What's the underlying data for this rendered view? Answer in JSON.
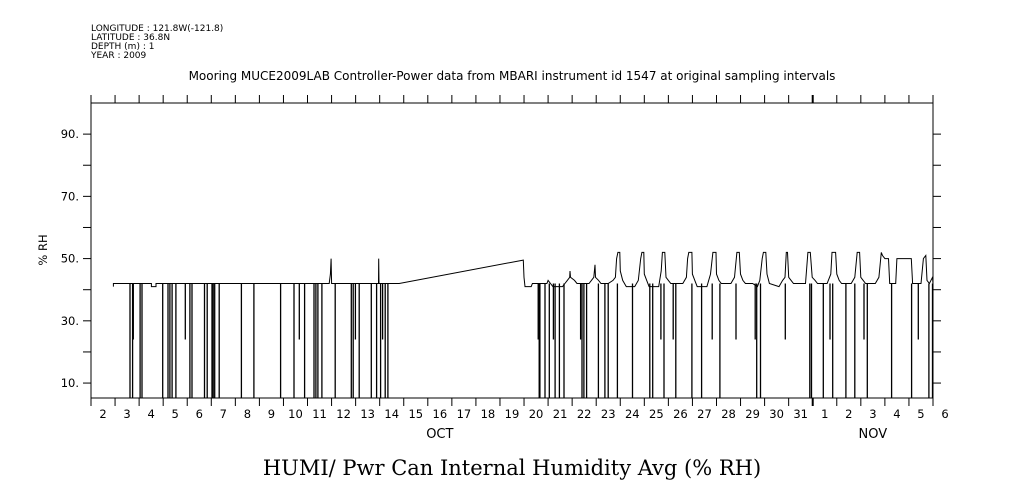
{
  "header": {
    "longitude": "LONGITUDE : 121.8W(-121.8)",
    "latitude": "LATITUDE : 36.8N",
    "depth": "DEPTH (m) : 1",
    "year": "YEAR : 2009"
  },
  "chart_data": {
    "type": "line",
    "title": "Mooring MUCE2009LAB Controller-Power data from MBARI instrument id 1547 at original sampling intervals",
    "xlabel": "HUMI/ Pwr Can Internal Humidity Avg (% RH)",
    "ylabel": "% RH",
    "x_units": "day (Oct 1 = 1, Nov 1 = 32)",
    "xlim": [
      2,
      37
    ],
    "ylim": [
      5.2,
      100
    ],
    "y_ticks": [
      10,
      30,
      50,
      70,
      90
    ],
    "y_tick_labels": [
      "10.",
      "30.",
      "50.",
      "70.",
      "90."
    ],
    "y_minor_ticks": [
      20,
      40,
      60,
      80
    ],
    "x_tick_labels": [
      "2",
      "3",
      "4",
      "5",
      "6",
      "7",
      "8",
      "9",
      "10",
      "11",
      "12",
      "13",
      "14",
      "15",
      "16",
      "17",
      "18",
      "19",
      "20",
      "21",
      "22",
      "23",
      "24",
      "25",
      "26",
      "27",
      "28",
      "29",
      "30",
      "31",
      "1",
      "2",
      "3",
      "4",
      "5",
      "6"
    ],
    "month_labels": [
      {
        "label": "OCT",
        "x": 16.5
      },
      {
        "label": "NOV",
        "x": 34.5
      }
    ],
    "grid": false,
    "line_color": "#000000",
    "series": [
      {
        "name": "HUMI",
        "points": [
          [
            2.93,
            41
          ],
          [
            2.93,
            42
          ],
          [
            4.51,
            42
          ],
          [
            4.51,
            41
          ],
          [
            4.7,
            41
          ],
          [
            4.7,
            42
          ],
          [
            11.9,
            42
          ],
          [
            11.95,
            45
          ],
          [
            11.98,
            50
          ],
          [
            12.0,
            42
          ],
          [
            13.95,
            42
          ],
          [
            13.96,
            50
          ],
          [
            13.97,
            42
          ],
          [
            14.81,
            42
          ],
          [
            19.97,
            49.5
          ],
          [
            20.0,
            44
          ],
          [
            20.04,
            41
          ],
          [
            20.3,
            41
          ],
          [
            20.35,
            42
          ],
          [
            20.95,
            42
          ],
          [
            21.0,
            43
          ],
          [
            21.1,
            42
          ],
          [
            21.2,
            41
          ],
          [
            21.6,
            41
          ],
          [
            21.7,
            42
          ],
          [
            21.8,
            43
          ],
          [
            21.9,
            44
          ],
          [
            21.91,
            46
          ],
          [
            21.93,
            44
          ],
          [
            22.1,
            43
          ],
          [
            22.2,
            42
          ],
          [
            22.7,
            42
          ],
          [
            22.8,
            43
          ],
          [
            22.9,
            44
          ],
          [
            22.95,
            48
          ],
          [
            22.97,
            44
          ],
          [
            23.1,
            43
          ],
          [
            23.2,
            42
          ],
          [
            23.5,
            42
          ],
          [
            23.7,
            43
          ],
          [
            23.8,
            44
          ],
          [
            23.85,
            50
          ],
          [
            23.9,
            52
          ],
          [
            23.98,
            52
          ],
          [
            24.0,
            46
          ],
          [
            24.1,
            43
          ],
          [
            24.25,
            41
          ],
          [
            24.6,
            41
          ],
          [
            24.75,
            43
          ],
          [
            24.85,
            50
          ],
          [
            24.9,
            52
          ],
          [
            24.98,
            52
          ],
          [
            25.0,
            45
          ],
          [
            25.1,
            43
          ],
          [
            25.2,
            41
          ],
          [
            25.6,
            41
          ],
          [
            25.7,
            46
          ],
          [
            25.75,
            52
          ],
          [
            25.85,
            52
          ],
          [
            25.9,
            44
          ],
          [
            26.0,
            43
          ],
          [
            26.1,
            42
          ],
          [
            26.6,
            42
          ],
          [
            26.75,
            44
          ],
          [
            26.8,
            50
          ],
          [
            26.85,
            52
          ],
          [
            26.98,
            52
          ],
          [
            27.0,
            45
          ],
          [
            27.1,
            43
          ],
          [
            27.2,
            41
          ],
          [
            27.6,
            41
          ],
          [
            27.75,
            45
          ],
          [
            27.85,
            52
          ],
          [
            27.98,
            52
          ],
          [
            28.0,
            45
          ],
          [
            28.1,
            43
          ],
          [
            28.2,
            42
          ],
          [
            28.6,
            42
          ],
          [
            28.75,
            44
          ],
          [
            28.85,
            52
          ],
          [
            28.95,
            52
          ],
          [
            29.0,
            45
          ],
          [
            29.1,
            43
          ],
          [
            29.2,
            42
          ],
          [
            29.5,
            42
          ],
          [
            29.7,
            41
          ],
          [
            29.8,
            43
          ],
          [
            29.9,
            50
          ],
          [
            29.95,
            52
          ],
          [
            30.05,
            52
          ],
          [
            30.1,
            45
          ],
          [
            30.2,
            42
          ],
          [
            30.6,
            41
          ],
          [
            30.75,
            43
          ],
          [
            30.85,
            44
          ],
          [
            30.9,
            52
          ],
          [
            30.95,
            52
          ],
          [
            31.0,
            44
          ],
          [
            31.1,
            43
          ],
          [
            31.2,
            42
          ],
          [
            31.7,
            42
          ],
          [
            31.8,
            52
          ],
          [
            31.9,
            52
          ],
          [
            31.98,
            44
          ],
          [
            32.1,
            43
          ],
          [
            32.2,
            42
          ],
          [
            32.6,
            42
          ],
          [
            32.75,
            45
          ],
          [
            32.8,
            52
          ],
          [
            32.95,
            52
          ],
          [
            33.0,
            45
          ],
          [
            33.1,
            43
          ],
          [
            33.2,
            42
          ],
          [
            33.6,
            42
          ],
          [
            33.75,
            44
          ],
          [
            33.85,
            52
          ],
          [
            33.95,
            52
          ],
          [
            34.0,
            44
          ],
          [
            34.1,
            43
          ],
          [
            34.2,
            42
          ],
          [
            34.6,
            42
          ],
          [
            34.75,
            44
          ],
          [
            34.85,
            52
          ],
          [
            34.9,
            51
          ],
          [
            35.0,
            50
          ],
          [
            35.15,
            50
          ],
          [
            35.2,
            42
          ],
          [
            35.45,
            42
          ],
          [
            35.5,
            50
          ],
          [
            36.1,
            50
          ],
          [
            36.15,
            42
          ],
          [
            36.5,
            42
          ],
          [
            36.6,
            50
          ],
          [
            36.7,
            51
          ],
          [
            36.75,
            43
          ],
          [
            36.85,
            42
          ],
          [
            36.98,
            44
          ],
          [
            37.0,
            42
          ]
        ],
        "dropouts": [
          [
            3.62,
            0
          ],
          [
            3.73,
            0
          ],
          [
            3.76,
            24
          ],
          [
            4.04,
            0
          ],
          [
            4.12,
            0
          ],
          [
            4.98,
            0
          ],
          [
            5.2,
            0
          ],
          [
            5.28,
            0
          ],
          [
            5.37,
            0
          ],
          [
            5.53,
            0
          ],
          [
            5.92,
            24
          ],
          [
            6.11,
            0
          ],
          [
            6.2,
            0
          ],
          [
            6.72,
            0
          ],
          [
            6.83,
            0
          ],
          [
            7.03,
            0
          ],
          [
            7.08,
            0
          ],
          [
            7.14,
            0
          ],
          [
            7.33,
            0
          ],
          [
            8.25,
            0
          ],
          [
            8.77,
            0
          ],
          [
            9.88,
            0
          ],
          [
            10.44,
            0
          ],
          [
            10.66,
            24
          ],
          [
            10.88,
            0
          ],
          [
            11.27,
            0
          ],
          [
            11.35,
            0
          ],
          [
            11.43,
            0
          ],
          [
            11.6,
            0
          ],
          [
            12.15,
            0
          ],
          [
            12.82,
            0
          ],
          [
            12.9,
            0
          ],
          [
            12.99,
            24
          ],
          [
            13.15,
            0
          ],
          [
            13.65,
            0
          ],
          [
            13.87,
            0
          ],
          [
            14.04,
            0
          ],
          [
            14.12,
            24
          ],
          [
            14.23,
            0
          ],
          [
            14.34,
            0
          ],
          [
            20.59,
            24
          ],
          [
            20.63,
            0
          ],
          [
            20.66,
            0
          ],
          [
            20.87,
            0
          ],
          [
            21.05,
            0
          ],
          [
            21.22,
            24
          ],
          [
            21.29,
            0
          ],
          [
            21.47,
            0
          ],
          [
            21.66,
            0
          ],
          [
            22.35,
            24
          ],
          [
            22.41,
            0
          ],
          [
            22.49,
            0
          ],
          [
            22.6,
            0
          ],
          [
            23.09,
            0
          ],
          [
            23.36,
            0
          ],
          [
            23.5,
            0
          ],
          [
            23.88,
            0
          ],
          [
            24.51,
            0
          ],
          [
            25.23,
            0
          ],
          [
            25.35,
            0
          ],
          [
            25.69,
            24
          ],
          [
            25.82,
            0
          ],
          [
            26.2,
            24
          ],
          [
            26.31,
            0
          ],
          [
            26.98,
            0
          ],
          [
            27.38,
            0
          ],
          [
            27.82,
            24
          ],
          [
            28.14,
            0
          ],
          [
            28.81,
            24
          ],
          [
            29.61,
            24
          ],
          [
            29.67,
            0
          ],
          [
            29.83,
            0
          ],
          [
            30.86,
            24
          ],
          [
            31.88,
            0
          ],
          [
            31.95,
            0
          ],
          [
            32.44,
            0
          ],
          [
            32.72,
            24
          ],
          [
            32.83,
            0
          ],
          [
            33.38,
            0
          ],
          [
            33.75,
            0
          ],
          [
            34.13,
            24
          ],
          [
            34.27,
            0
          ],
          [
            35.28,
            0
          ],
          [
            36.11,
            0
          ],
          [
            36.39,
            24
          ],
          [
            36.83,
            0
          ],
          [
            36.98,
            0
          ]
        ]
      }
    ]
  }
}
